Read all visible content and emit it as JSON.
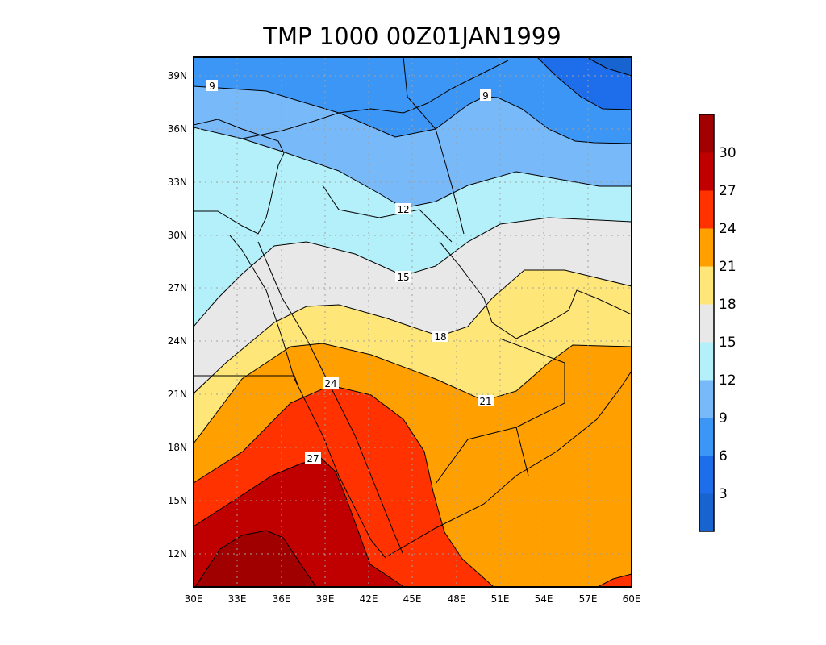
{
  "chart_data": {
    "type": "heatmap",
    "title": "TMP 1000 00Z01JAN1999",
    "variable": "TMP",
    "level": "1000",
    "time": "00Z01JAN1999",
    "xlim": [
      30,
      60
    ],
    "ylim": [
      10,
      40
    ],
    "grid": true,
    "x_ticks": [
      "30E",
      "33E",
      "36E",
      "39E",
      "42E",
      "45E",
      "48E",
      "51E",
      "54E",
      "57E",
      "60E"
    ],
    "y_ticks": [
      "39N",
      "36N",
      "33N",
      "30N",
      "27N",
      "24N",
      "21N",
      "18N",
      "15N",
      "12N"
    ],
    "contour_levels": [
      3,
      6,
      9,
      12,
      15,
      18,
      21,
      24,
      27,
      30
    ],
    "contour_labels": [
      "9",
      "9",
      "12",
      "15",
      "18",
      "21",
      "24",
      "27"
    ],
    "colorbar": {
      "labels": [
        "3",
        "6",
        "9",
        "12",
        "15",
        "18",
        "21",
        "24",
        "27",
        "30"
      ],
      "colors": [
        "#1763d0",
        "#1e6eeb",
        "#3c96f5",
        "#78b9fa",
        "#b4f0fa",
        "#e8e8e8",
        "#ffe678",
        "#ffa000",
        "#ff3200",
        "#c00000",
        "#a00000"
      ],
      "placement": "right"
    }
  }
}
